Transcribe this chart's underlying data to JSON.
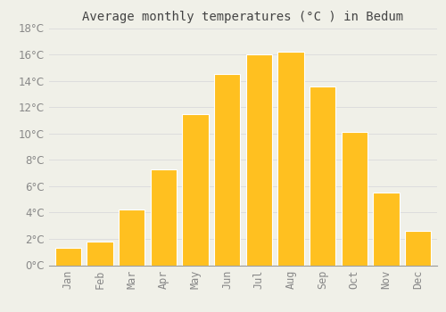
{
  "title": "Average monthly temperatures (°C ) in Bedum",
  "months": [
    "Jan",
    "Feb",
    "Mar",
    "Apr",
    "May",
    "Jun",
    "Jul",
    "Aug",
    "Sep",
    "Oct",
    "Nov",
    "Dec"
  ],
  "values": [
    1.3,
    1.8,
    4.2,
    7.3,
    11.5,
    14.5,
    16.0,
    16.2,
    13.6,
    10.1,
    5.5,
    2.6
  ],
  "bar_color": "#FFC020",
  "bar_edge_color": "#FFFFFF",
  "background_color": "#F0F0E8",
  "grid_color": "#DDDDDD",
  "text_color": "#888888",
  "title_color": "#444444",
  "ylim": [
    0,
    18
  ],
  "yticks": [
    0,
    2,
    4,
    6,
    8,
    10,
    12,
    14,
    16,
    18
  ],
  "title_fontsize": 10,
  "tick_fontsize": 8.5,
  "bar_width": 0.82
}
